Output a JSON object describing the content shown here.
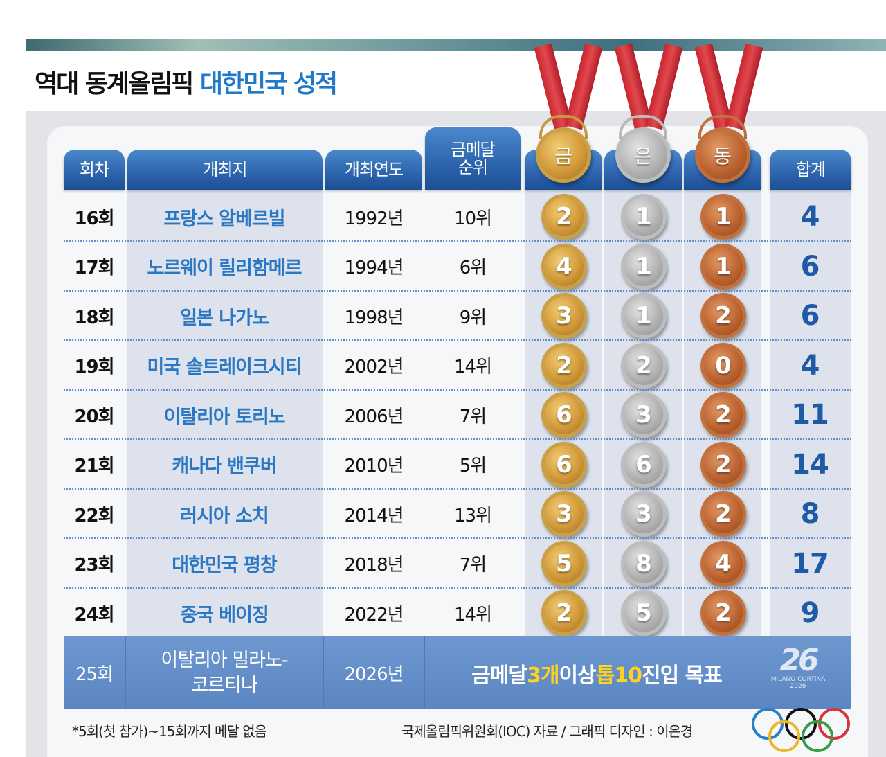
{
  "title": {
    "prefix": "역대 동계올림픽",
    "highlight": "대한민국 성적"
  },
  "headers": {
    "edition": "회차",
    "host": "개최지",
    "year": "개최연도",
    "rank": "금메달\n순위",
    "gold": "금",
    "silver": "은",
    "bronze": "동",
    "total": "합계"
  },
  "rows": [
    {
      "edition": "16회",
      "host": "프랑스 알베르빌",
      "year": "1992년",
      "rank": "10위",
      "gold": 2,
      "silver": 1,
      "bronze": 1,
      "total": 4
    },
    {
      "edition": "17회",
      "host": "노르웨이 릴리함메르",
      "year": "1994년",
      "rank": "6위",
      "gold": 4,
      "silver": 1,
      "bronze": 1,
      "total": 6
    },
    {
      "edition": "18회",
      "host": "일본 나가노",
      "year": "1998년",
      "rank": "9위",
      "gold": 3,
      "silver": 1,
      "bronze": 2,
      "total": 6
    },
    {
      "edition": "19회",
      "host": "미국 솔트레이크시티",
      "year": "2002년",
      "rank": "14위",
      "gold": 2,
      "silver": 2,
      "bronze": 0,
      "total": 4
    },
    {
      "edition": "20회",
      "host": "이탈리아 토리노",
      "year": "2006년",
      "rank": "7위",
      "gold": 6,
      "silver": 3,
      "bronze": 2,
      "total": 11
    },
    {
      "edition": "21회",
      "host": "캐나다 밴쿠버",
      "year": "2010년",
      "rank": "5위",
      "gold": 6,
      "silver": 6,
      "bronze": 2,
      "total": 14
    },
    {
      "edition": "22회",
      "host": "러시아 소치",
      "year": "2014년",
      "rank": "13위",
      "gold": 3,
      "silver": 3,
      "bronze": 2,
      "total": 8
    },
    {
      "edition": "23회",
      "host": "대한민국 평창",
      "year": "2018년",
      "rank": "7위",
      "gold": 5,
      "silver": 8,
      "bronze": 4,
      "total": 17
    },
    {
      "edition": "24회",
      "host": "중국 베이징",
      "year": "2022년",
      "rank": "14위",
      "gold": 2,
      "silver": 5,
      "bronze": 2,
      "total": 9
    }
  ],
  "future": {
    "edition": "25회",
    "host_line1": "이탈리아 밀라노-",
    "host_line2": "코르티나",
    "year": "2026년",
    "goal_pre": "금메달 ",
    "goal_gold": "3개",
    "goal_mid": " 이상 ",
    "goal_top": "톱10",
    "goal_post": " 진입 목표",
    "logo_mark": "26",
    "logo_text": "MILANO CORTINA",
    "logo_year": "2026"
  },
  "footnote": "*5회(첫 참가)~15회까지 메달 없음",
  "source": "국제올림픽위원회(IOC) 자료 / 그래픽 디자인 : 이은경",
  "colors": {
    "header_blue": "#2c64ad",
    "host_text": "#2a78c4",
    "total_text": "#1e5aa6",
    "gold": "#d29a3a",
    "silver": "#b3b3b3",
    "bronze": "#bc6431",
    "goal_highlight": "#ffd21f"
  }
}
